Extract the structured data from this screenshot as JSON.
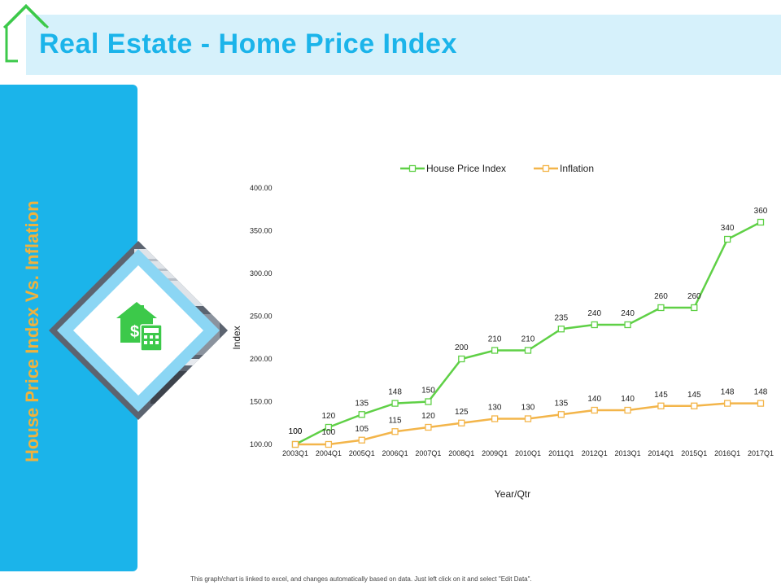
{
  "page": {
    "title": "Real Estate - Home Price Index",
    "side_title": "House Price Index Vs. Inflation",
    "footer_note": "This graph/chart is linked to excel, and changes automatically based on data. Just left click on it and select \"Edit Data\"."
  },
  "colors": {
    "accent_blue": "#1bb4ea",
    "title_band": "#d6f1fb",
    "side_title": "#f0b23d",
    "house_icon": "#3cc94a",
    "hpi_line": "#5fd046",
    "inflation_line": "#f3b54a"
  },
  "icons": [
    "house-outline-icon",
    "house-dollar-calculator-icon"
  ],
  "chart_data": {
    "type": "line",
    "categories": [
      "2003Q1",
      "2004Q1",
      "2005Q1",
      "2006Q1",
      "2007Q1",
      "2008Q1",
      "2009Q1",
      "2010Q1",
      "2011Q1",
      "2012Q1",
      "2013Q1",
      "2014Q1",
      "2015Q1",
      "2016Q1",
      "2017Q1"
    ],
    "series": [
      {
        "name": "House Price Index",
        "color": "#5fd046",
        "values": [
          100,
          120,
          135,
          148,
          150,
          200,
          210,
          210,
          235,
          240,
          240,
          260,
          260,
          340,
          360
        ]
      },
      {
        "name": "Inflation",
        "color": "#f3b54a",
        "values": [
          100,
          100,
          105,
          115,
          120,
          125,
          130,
          130,
          135,
          140,
          140,
          145,
          145,
          148,
          148
        ]
      }
    ],
    "ylim": [
      100,
      400
    ],
    "yticks": [
      "100.00",
      "150.00",
      "200.00",
      "250.00",
      "300.00",
      "350.00",
      "400.00"
    ],
    "ytick_values": [
      100,
      150,
      200,
      250,
      300,
      350,
      400
    ],
    "xlabel": "Year/Qtr",
    "ylabel": "Index",
    "legend": "top",
    "grid": false
  }
}
